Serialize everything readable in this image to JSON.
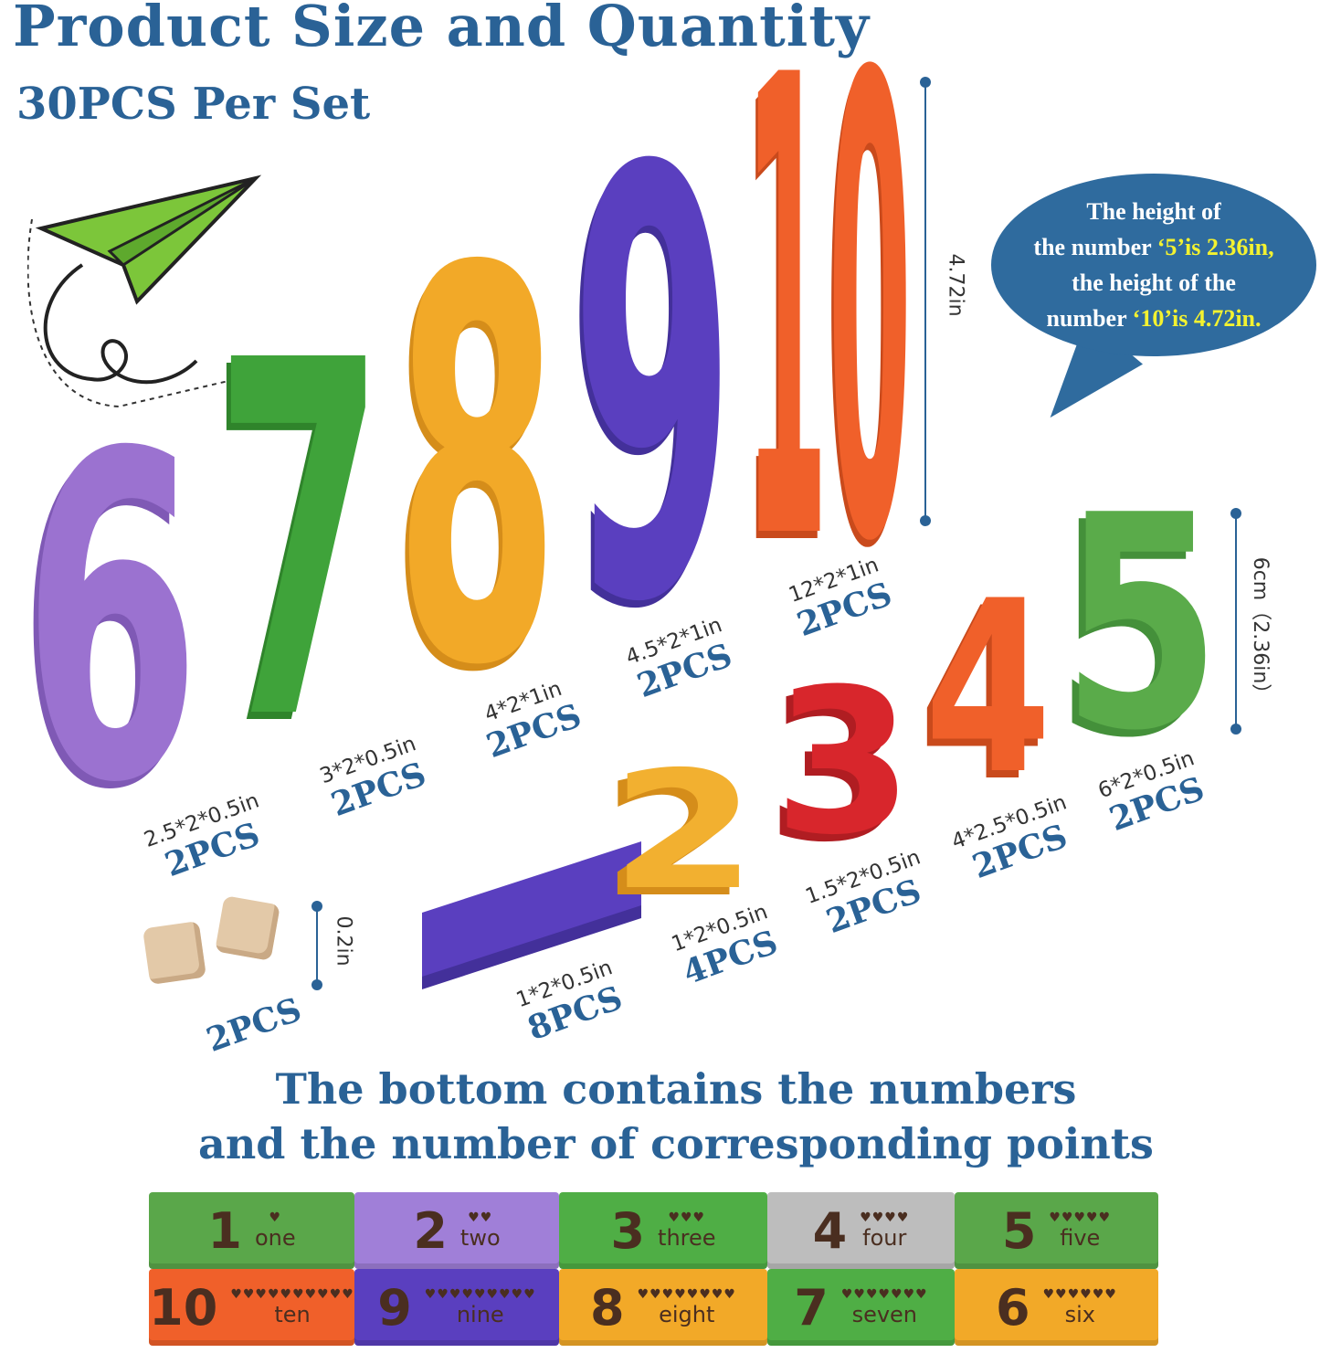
{
  "header": {
    "title": "Product Size and Quantity",
    "subtitle": "30PCS Per Set"
  },
  "bubble": {
    "line1": "The height of",
    "line2_pre": "the number ",
    "line2_hl": "‘5’is 2.36in,",
    "line3": "the height of the",
    "line4_pre": "number ",
    "line4_hl": "‘10’is 4.72in.",
    "highlight_color": "#f3f230",
    "bg_color": "#2f6b9e"
  },
  "big_numbers": [
    {
      "digit": "6",
      "color": "#9b72d0",
      "size": "2.5*2*0.5in",
      "qty": "2PCS"
    },
    {
      "digit": "7",
      "color": "#3fa33a",
      "size": "3*2*0.5in",
      "qty": "2PCS"
    },
    {
      "digit": "8",
      "color": "#f2a928",
      "size": "4*2*1in",
      "qty": "2PCS"
    },
    {
      "digit": "9",
      "color": "#5a3fbf",
      "size": "4.5*2*1in",
      "qty": "2PCS"
    },
    {
      "digit": "10",
      "color": "#f0602a",
      "size": "12*2*1in",
      "qty": "2PCS"
    }
  ],
  "small_numbers": [
    {
      "digit": "1",
      "color": "#5a3fbf",
      "size": "1*2*0.5in",
      "qty": "8PCS"
    },
    {
      "digit": "2",
      "color": "#f2b030",
      "size": "1*2*0.5in",
      "qty": "4PCS"
    },
    {
      "digit": "3",
      "color": "#d8262c",
      "size": "1.5*2*0.5in",
      "qty": "2PCS"
    },
    {
      "digit": "4",
      "color": "#f0602a",
      "size": "4*2.5*0.5in",
      "qty": "2PCS"
    },
    {
      "digit": "5",
      "color": "#5aab4a",
      "size": "6*2*0.5in",
      "qty": "2PCS"
    }
  ],
  "dice": {
    "size": "0.2in",
    "qty": "2PCS"
  },
  "dimensions": {
    "tall": "4.72in",
    "short": "6cm（2.36in）"
  },
  "caption": {
    "line1": "The bottom contains the numbers",
    "line2": "and the number of corresponding points"
  },
  "tiles": [
    {
      "n": "1",
      "word": "one",
      "hearts": "♥",
      "color": "#5aa74a"
    },
    {
      "n": "2",
      "word": "two",
      "hearts": "♥♥",
      "color": "#a07fd8"
    },
    {
      "n": "3",
      "word": "three",
      "hearts": "♥♥♥",
      "color": "#4fae45"
    },
    {
      "n": "4",
      "word": "four",
      "hearts": "♥♥♥♥",
      "color": "#bdbdbd"
    },
    {
      "n": "5",
      "word": "five",
      "hearts": "♥♥♥♥♥",
      "color": "#5aa74a"
    },
    {
      "n": "10",
      "word": "ten",
      "hearts": "♥♥♥♥♥♥♥♥♥♥",
      "color": "#f0602a"
    },
    {
      "n": "9",
      "word": "nine",
      "hearts": "♥♥♥♥♥♥♥♥♥",
      "color": "#5a3fbf"
    },
    {
      "n": "8",
      "word": "eight",
      "hearts": "♥♥♥♥♥♥♥♥",
      "color": "#f2a928"
    },
    {
      "n": "7",
      "word": "seven",
      "hearts": "♥♥♥♥♥♥♥",
      "color": "#4fae45"
    },
    {
      "n": "6",
      "word": "six",
      "hearts": "♥♥♥♥♥♥",
      "color": "#f2a928"
    }
  ]
}
